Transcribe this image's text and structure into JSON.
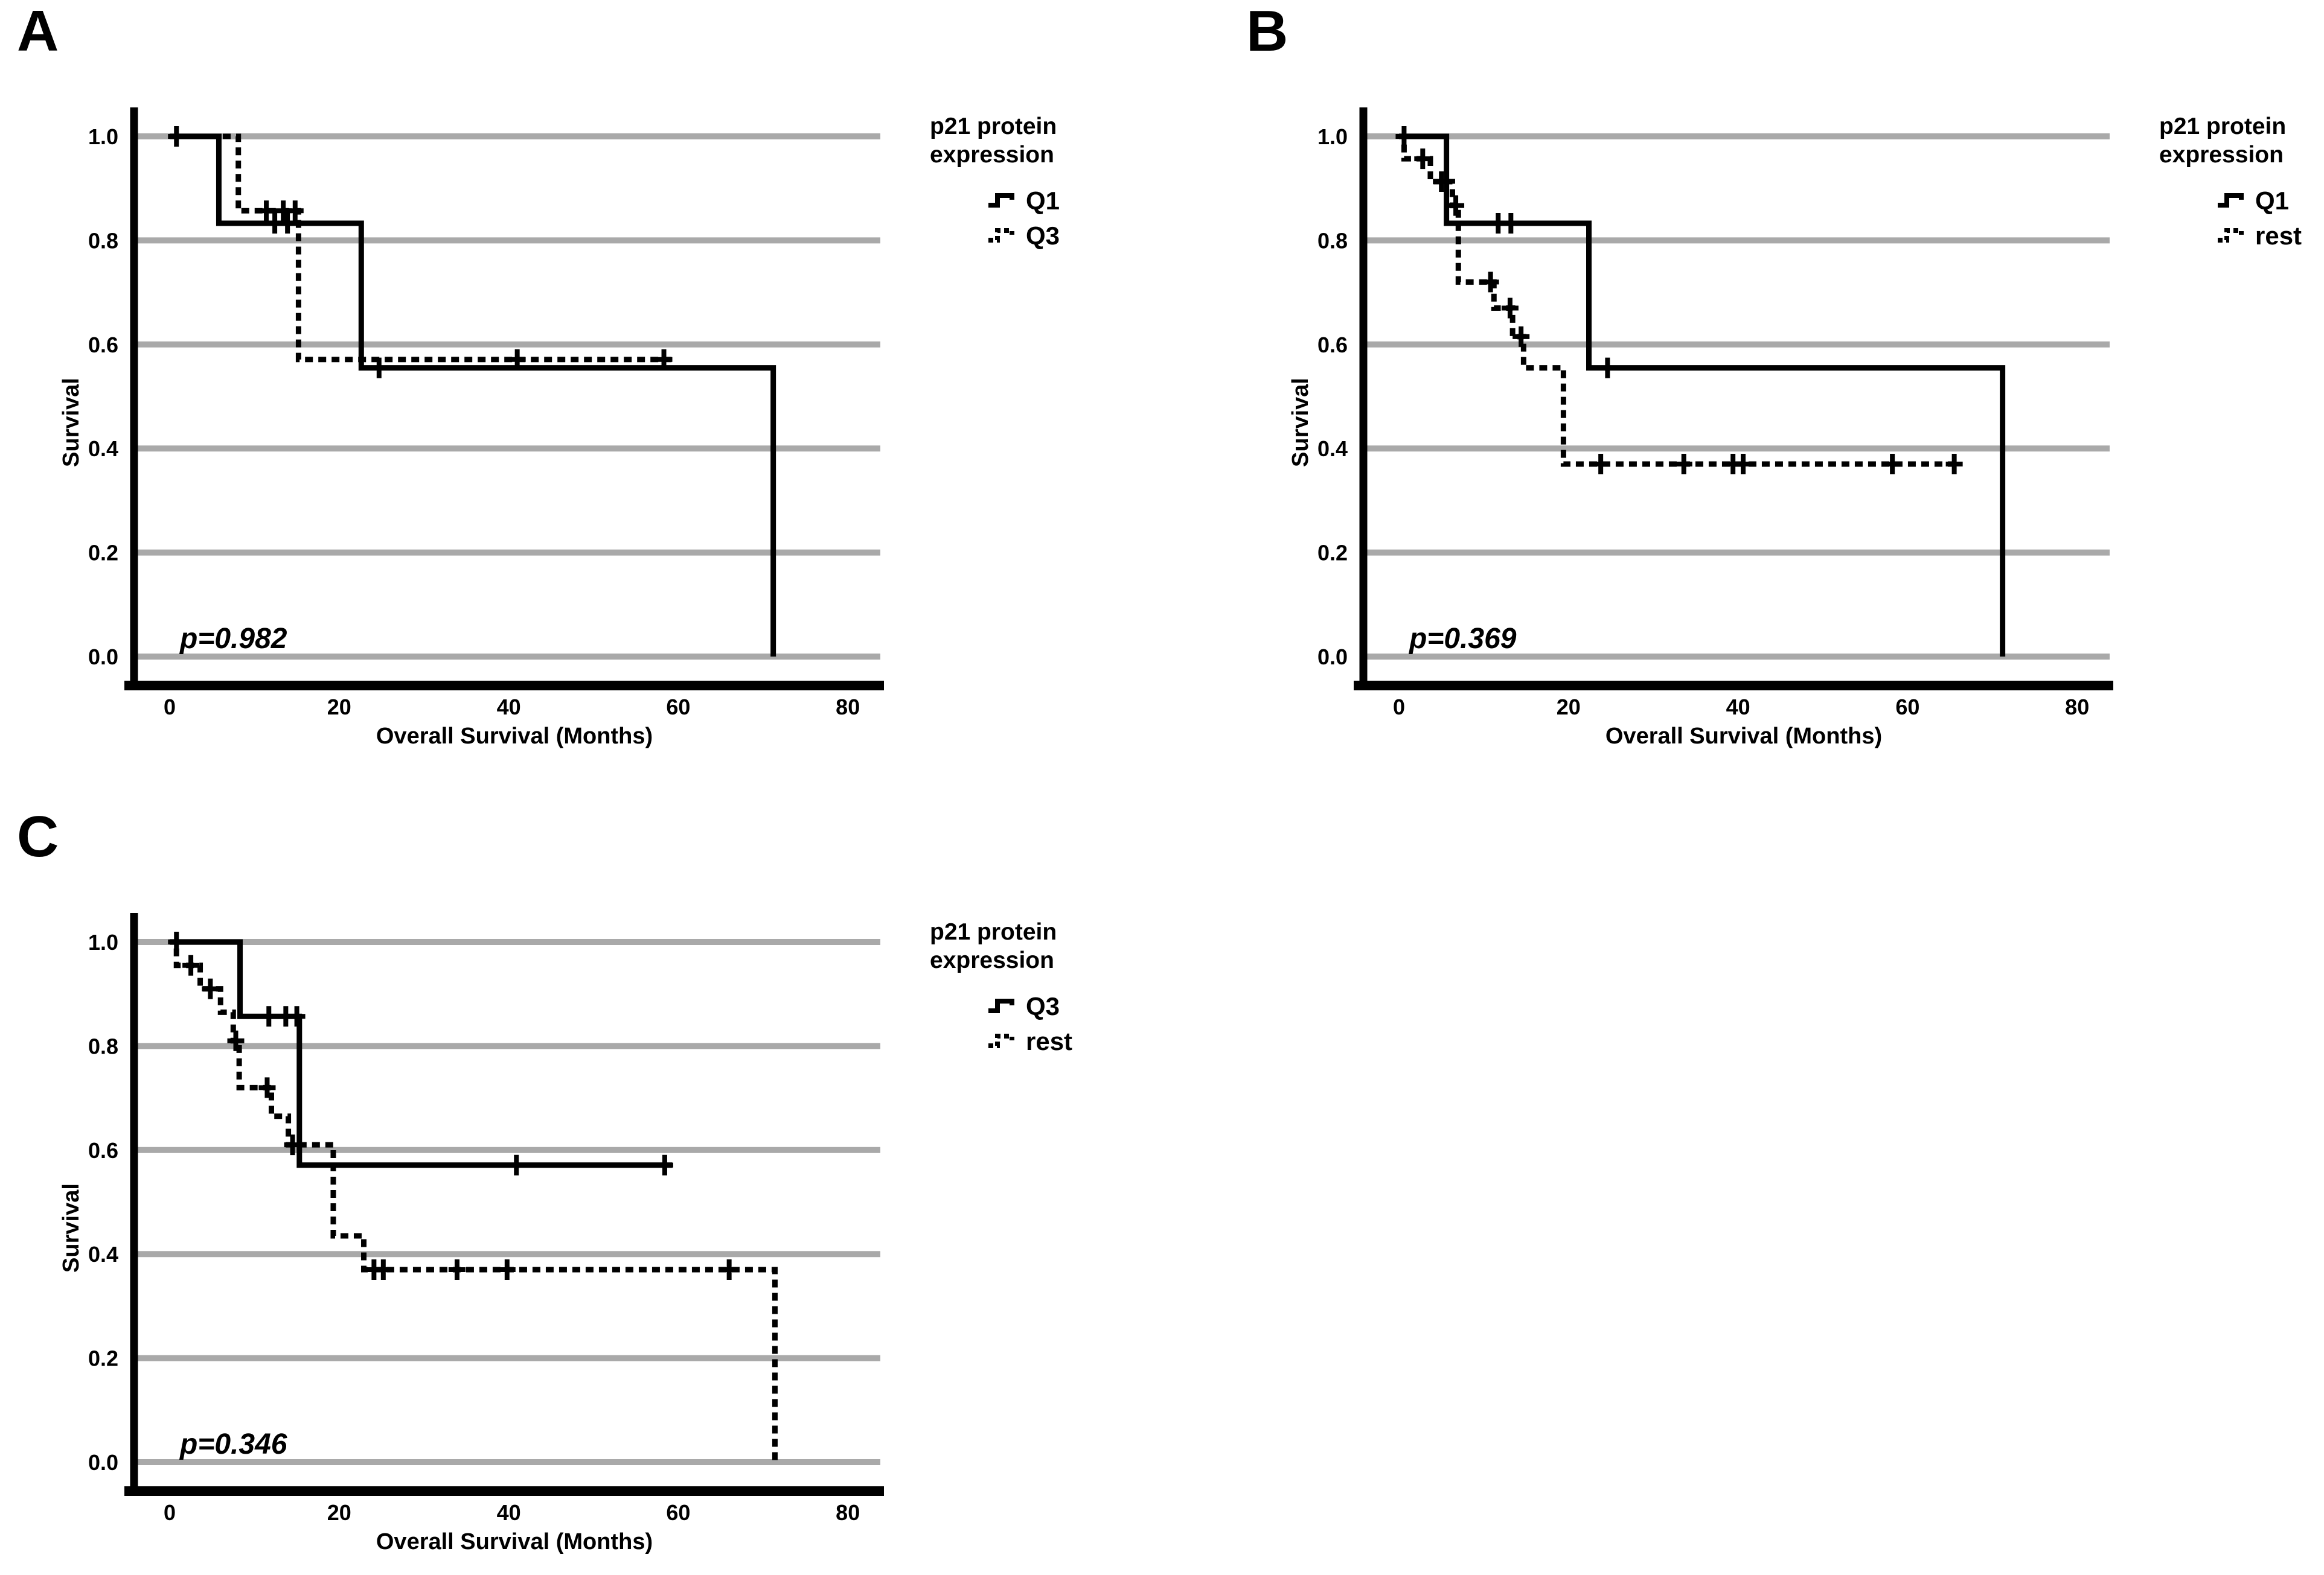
{
  "figure": {
    "background_color": "#ffffff",
    "grid_color": "#a9a9a9",
    "curve_color": "#000000",
    "xlabel": "Overall Survival (Months)",
    "ylabel": "Survival",
    "legend_title_lines": [
      "p21 protein",
      "expression"
    ]
  },
  "chart_data": {
    "type": "line",
    "subtype": "kaplan-meier-step",
    "grid": "horizontal-only",
    "legend_position": "right-top",
    "x_range_months": [
      0,
      80
    ],
    "x_ticks": [
      0,
      20,
      40,
      60,
      80
    ],
    "y_ticks": [
      0.0,
      0.2,
      0.4,
      0.6,
      0.8,
      1.0
    ],
    "xlabel": "Overall Survival (Months)",
    "ylabel": "Survival",
    "panels": [
      {
        "label": "A",
        "p_value": "p=0.982",
        "legend": {
          "title_lines": [
            "p21 protein",
            "expression"
          ],
          "items": [
            {
              "label": "Q1",
              "line_style": "solid"
            },
            {
              "label": "Q3",
              "line_style": "dashed"
            }
          ]
        },
        "series": [
          {
            "name": "Q1",
            "line_style": "solid",
            "steps": [
              [
                0,
                1.0
              ],
              [
                5.8,
                0.833
              ],
              [
                22.6,
                0.555
              ],
              [
                71.2,
                0.0
              ]
            ],
            "end_month": 71.2,
            "censor_marks": [
              [
                0.8,
                1.0
              ],
              [
                12.4,
                0.833
              ],
              [
                13.9,
                0.833
              ],
              [
                24.7,
                0.555
              ]
            ]
          },
          {
            "name": "Q3",
            "line_style": "dashed",
            "steps": [
              [
                0,
                1.0
              ],
              [
                8.1,
                0.857
              ],
              [
                15.2,
                0.571
              ]
            ],
            "end_month": 59.2,
            "censor_marks": [
              [
                11.4,
                0.857
              ],
              [
                13.4,
                0.857
              ],
              [
                14.8,
                0.857
              ],
              [
                41.0,
                0.571
              ],
              [
                58.3,
                0.571
              ]
            ]
          }
        ]
      },
      {
        "label": "B",
        "p_value": "p=0.369",
        "legend": {
          "title_lines": [
            "p21 protein",
            "expression"
          ],
          "items": [
            {
              "label": "Q1",
              "line_style": "solid"
            },
            {
              "label": "rest",
              "line_style": "dashed"
            }
          ]
        },
        "series": [
          {
            "name": "Q1",
            "line_style": "solid",
            "steps": [
              [
                0,
                1.0
              ],
              [
                5.6,
                0.833
              ],
              [
                22.4,
                0.555
              ],
              [
                71.2,
                0.0
              ]
            ],
            "end_month": 71.2,
            "censor_marks": [
              [
                0.6,
                1.0
              ],
              [
                11.7,
                0.833
              ],
              [
                13.2,
                0.833
              ],
              [
                24.6,
                0.555
              ]
            ]
          },
          {
            "name": "rest",
            "line_style": "dashed",
            "steps": [
              [
                0,
                1.0
              ],
              [
                0.6,
                0.957
              ],
              [
                3.7,
                0.913
              ],
              [
                6.3,
                0.867
              ],
              [
                7.0,
                0.72
              ],
              [
                11.2,
                0.67
              ],
              [
                13.4,
                0.615
              ],
              [
                14.7,
                0.555
              ],
              [
                19.4,
                0.37
              ]
            ],
            "end_month": 66.0,
            "censor_marks": [
              [
                2.8,
                0.957
              ],
              [
                5.0,
                0.913
              ],
              [
                6.7,
                0.867
              ],
              [
                10.8,
                0.72
              ],
              [
                13.1,
                0.67
              ],
              [
                14.4,
                0.615
              ],
              [
                23.8,
                0.37
              ],
              [
                33.6,
                0.37
              ],
              [
                39.4,
                0.37
              ],
              [
                40.6,
                0.37
              ],
              [
                58.2,
                0.37
              ],
              [
                65.5,
                0.37
              ]
            ]
          }
        ]
      },
      {
        "label": "C",
        "p_value": "p=0.346",
        "legend": {
          "title_lines": [
            "p21 protein",
            "expression"
          ],
          "items": [
            {
              "label": "Q3",
              "line_style": "solid"
            },
            {
              "label": "rest",
              "line_style": "dashed"
            }
          ]
        },
        "series": [
          {
            "name": "Q3",
            "line_style": "solid",
            "steps": [
              [
                0,
                1.0
              ],
              [
                8.3,
                0.857
              ],
              [
                15.3,
                0.571
              ]
            ],
            "end_month": 59.3,
            "censor_marks": [
              [
                0.8,
                1.0
              ],
              [
                11.7,
                0.857
              ],
              [
                13.7,
                0.857
              ],
              [
                15.0,
                0.857
              ],
              [
                40.9,
                0.571
              ],
              [
                58.4,
                0.571
              ]
            ]
          },
          {
            "name": "rest",
            "line_style": "dashed",
            "steps": [
              [
                0,
                1.0
              ],
              [
                0.8,
                0.955
              ],
              [
                3.6,
                0.91
              ],
              [
                6.0,
                0.865
              ],
              [
                7.5,
                0.81
              ],
              [
                8.2,
                0.72
              ],
              [
                12.0,
                0.665
              ],
              [
                14.0,
                0.61
              ],
              [
                19.3,
                0.435
              ],
              [
                22.9,
                0.37
              ],
              [
                71.4,
                0.0
              ]
            ],
            "end_month": 71.4,
            "censor_marks": [
              [
                2.5,
                0.955
              ],
              [
                4.8,
                0.91
              ],
              [
                7.8,
                0.81
              ],
              [
                11.5,
                0.72
              ],
              [
                14.5,
                0.61
              ],
              [
                24.1,
                0.37
              ],
              [
                25.2,
                0.37
              ],
              [
                33.9,
                0.37
              ],
              [
                39.8,
                0.37
              ],
              [
                66.0,
                0.37
              ]
            ]
          }
        ]
      }
    ]
  }
}
